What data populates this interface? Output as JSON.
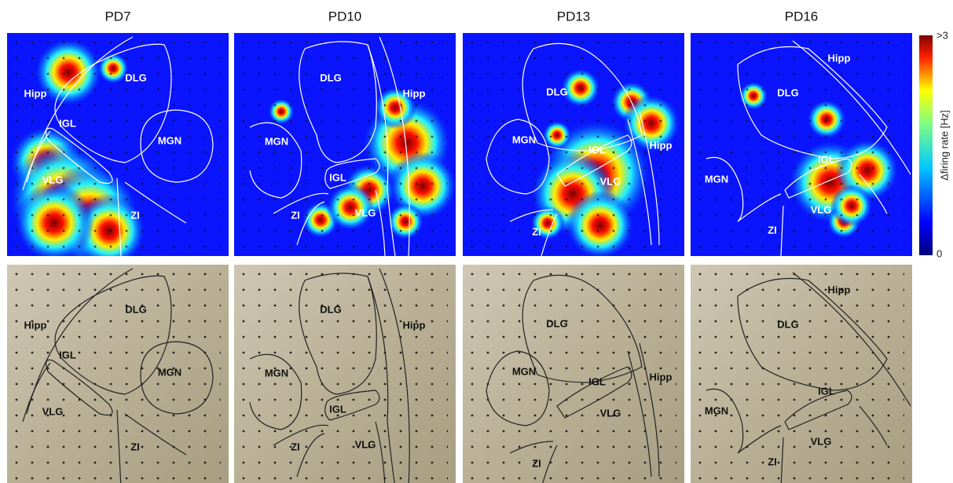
{
  "columns": [
    {
      "title": "PD7",
      "top_labels": [
        "Hipp",
        "DLG",
        "IGL",
        "MGN",
        "VLG",
        "ZI"
      ],
      "bottom_labels": [
        "Hipp",
        "DLG",
        "IGL",
        "MGN",
        "VLG",
        "ZI"
      ]
    },
    {
      "title": "PD10",
      "top_labels": [
        "DLG",
        "Hipp",
        "MGN",
        "IGL",
        "VLG",
        "ZI"
      ],
      "bottom_labels": [
        "DLG",
        "Hipp",
        "MGN",
        "IGL",
        "VLG",
        "ZI"
      ]
    },
    {
      "title": "PD13",
      "top_labels": [
        "DLG",
        "Hipp",
        "MGN",
        "IGL",
        "VLG",
        "ZI"
      ],
      "bottom_labels": [
        "DLG",
        "Hipp",
        "MGN",
        "IGL",
        "VLG",
        "ZI"
      ]
    },
    {
      "title": "PD16",
      "top_labels": [
        "Hipp",
        "DLG",
        "MGN",
        "IGL",
        "VLG",
        "ZI"
      ],
      "bottom_labels": [
        "Hipp",
        "DLG",
        "MGN",
        "IGL",
        "VLG",
        "ZI"
      ]
    }
  ],
  "colorbar": {
    "label": "Δfiring rate [Hz]",
    "max_label": ">3",
    "min_label": "0"
  }
}
